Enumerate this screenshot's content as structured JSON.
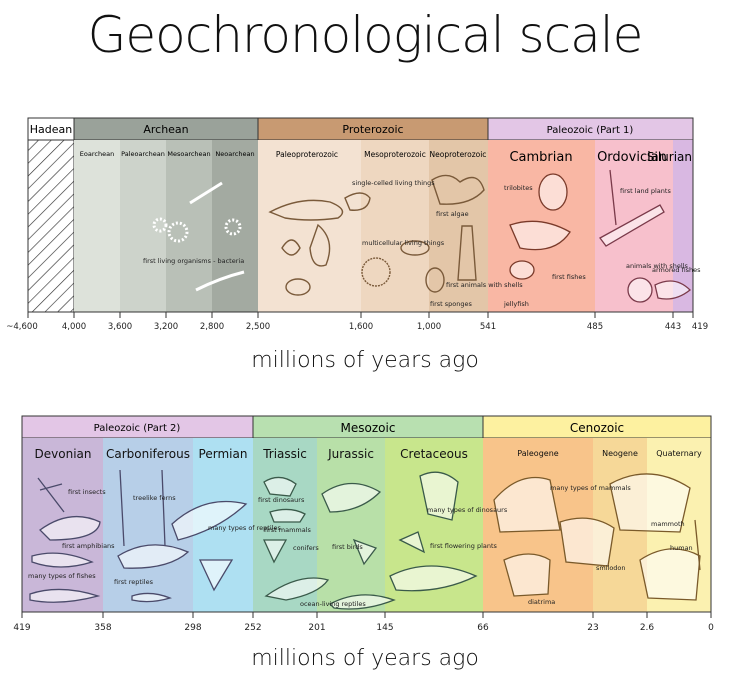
{
  "title": "Geochronological scale",
  "unit_label": "millions of years ago",
  "colors": {
    "hadean": "#ffffff",
    "archean": "#9aa29a",
    "archean_light": "#c8cec6",
    "proterozoic": "#c89a72",
    "proterozoic_light": "#f0dcc8",
    "paleozoic": "#e3c6e6",
    "cambrian": "#f9b7a4",
    "ordovician": "#f7c0cc",
    "silurian": "#d9b8e2",
    "devonian": "#c9b7d8",
    "carboniferous": "#b7cfe8",
    "permian": "#aee0f2",
    "mesozoic": "#b8e0b0",
    "triassic": "#a8d8c4",
    "jurassic": "#b8e0a8",
    "cretaceous": "#c8e68c",
    "cenozoic": "#fdf1a0",
    "paleogene": "#f8c48a",
    "neogene": "#f6d898",
    "quaternary": "#fbf1b0"
  },
  "row1": {
    "eons": [
      {
        "key": "hadean",
        "label": "Hadean"
      },
      {
        "key": "archean",
        "label": "Archean"
      },
      {
        "key": "proterozoic",
        "label": "Proterozoic"
      },
      {
        "key": "paleozoic1",
        "label": "Paleozoic  (Part 1)"
      }
    ],
    "subdivisions": [
      {
        "label": "Eoarchean"
      },
      {
        "label": "Paleoarchean"
      },
      {
        "label": "Mesoarchean"
      },
      {
        "label": "Neoarchean"
      },
      {
        "label": "Paleoproterozoic"
      },
      {
        "label": "Mesoproterozoic"
      },
      {
        "label": "Neoproterozoic"
      }
    ],
    "periods": [
      {
        "label": "Cambrian"
      },
      {
        "label": "Ordovician"
      },
      {
        "label": "Silurian"
      }
    ],
    "annotations": [
      {
        "text": "first living organisms - bacteria"
      },
      {
        "text": "single-celled living things"
      },
      {
        "text": "multicellular living things"
      },
      {
        "text": "first algae"
      },
      {
        "text": "first animals with shells"
      },
      {
        "text": "first sponges"
      },
      {
        "text": "trilobites"
      },
      {
        "text": "first fishes"
      },
      {
        "text": "jellyfish"
      },
      {
        "text": "first land plants"
      },
      {
        "text": "animals with shells"
      },
      {
        "text": "armored fishes"
      }
    ],
    "ticks": [
      "~4,600",
      "4,000",
      "3,600",
      "3,200",
      "2,800",
      "2,500",
      "1,600",
      "1,000",
      "541",
      "485",
      "443",
      "419"
    ]
  },
  "row2": {
    "eras": [
      {
        "key": "paleozoic2",
        "label": "Paleozoic  (Part 2)"
      },
      {
        "key": "mesozoic",
        "label": "Mesozoic"
      },
      {
        "key": "cenozoic",
        "label": "Cenozoic"
      }
    ],
    "periods": [
      {
        "label": "Devonian"
      },
      {
        "label": "Carboniferous"
      },
      {
        "label": "Permian"
      },
      {
        "label": "Triassic"
      },
      {
        "label": "Jurassic"
      },
      {
        "label": "Cretaceous"
      },
      {
        "label": "Paleogene"
      },
      {
        "label": "Neogene"
      },
      {
        "label": "Quaternary"
      }
    ],
    "annotations": [
      {
        "text": "first insects"
      },
      {
        "text": "first amphibians"
      },
      {
        "text": "many types of fishes"
      },
      {
        "text": "treelike ferns"
      },
      {
        "text": "first reptiles"
      },
      {
        "text": "many types of reptiles"
      },
      {
        "text": "first dinosaurs"
      },
      {
        "text": "first mammals"
      },
      {
        "text": "conifers"
      },
      {
        "text": "ocean-living reptiles"
      },
      {
        "text": "first birds"
      },
      {
        "text": "many types of dinosaurs"
      },
      {
        "text": "first flowering plants"
      },
      {
        "text": "many types of mammals"
      },
      {
        "text": "diatrima"
      },
      {
        "text": "smilodon"
      },
      {
        "text": "mammoth"
      },
      {
        "text": "human"
      }
    ],
    "ticks": [
      "419",
      "358",
      "298",
      "252",
      "201",
      "145",
      "66",
      "23",
      "2.6",
      "0"
    ]
  }
}
